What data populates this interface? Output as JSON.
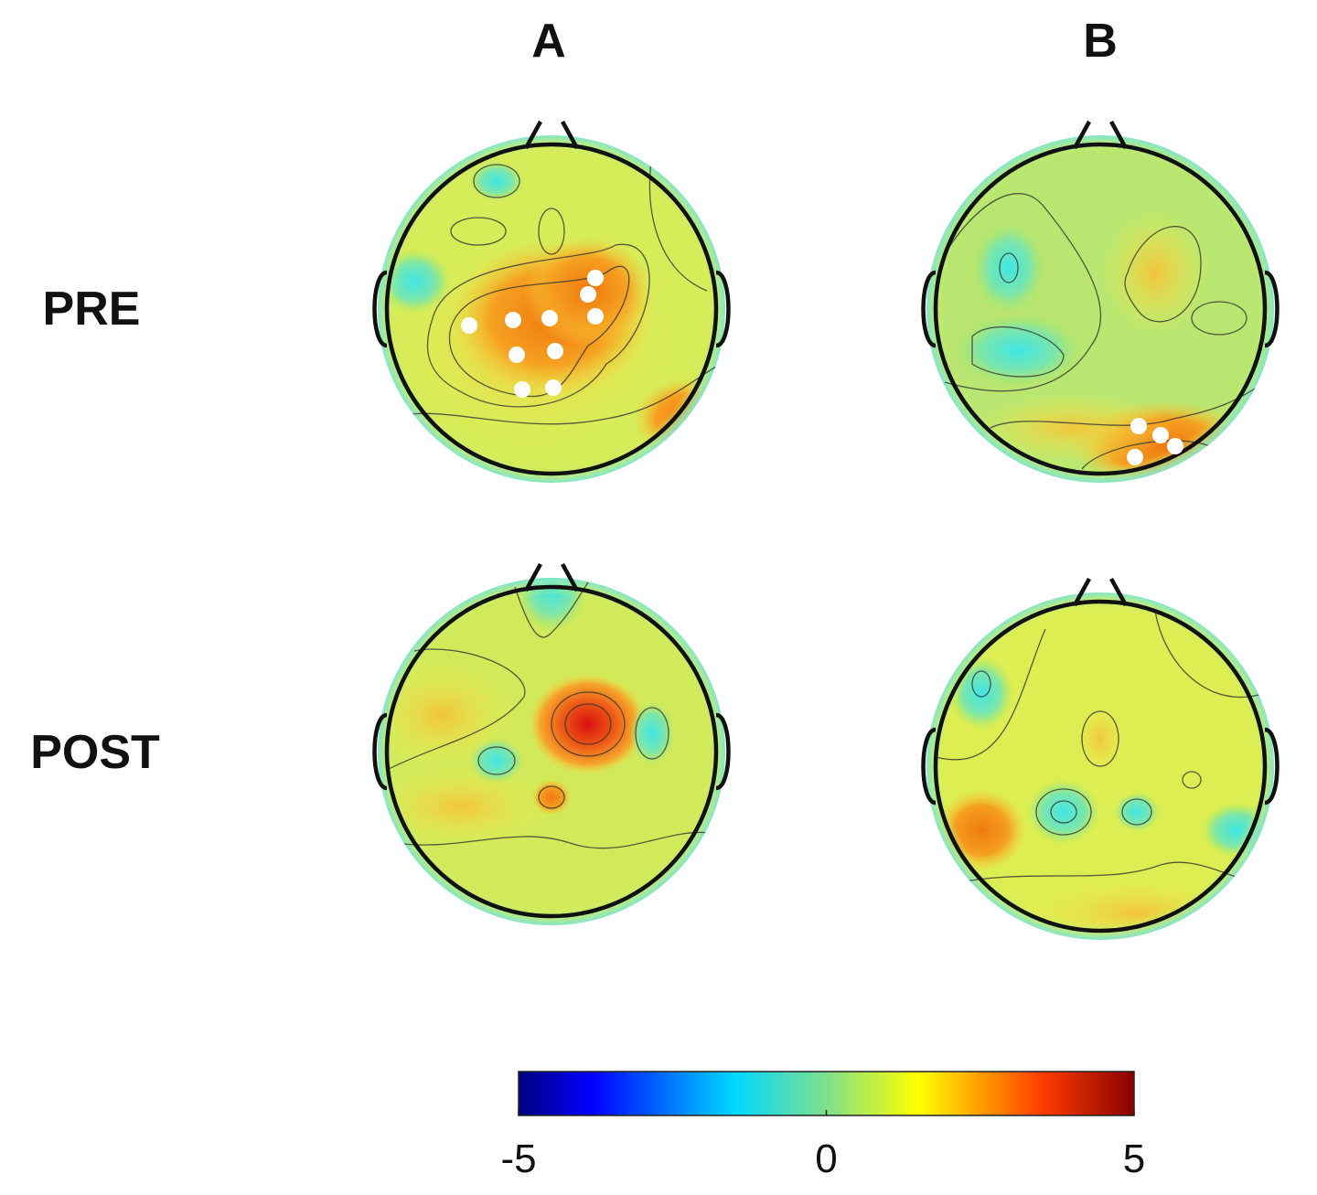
{
  "columns": [
    "A",
    "B"
  ],
  "rows": [
    "PRE",
    "POST"
  ],
  "colorbar": {
    "lim": [
      -5,
      5
    ],
    "ticks": [
      -5,
      0,
      5
    ]
  }
}
